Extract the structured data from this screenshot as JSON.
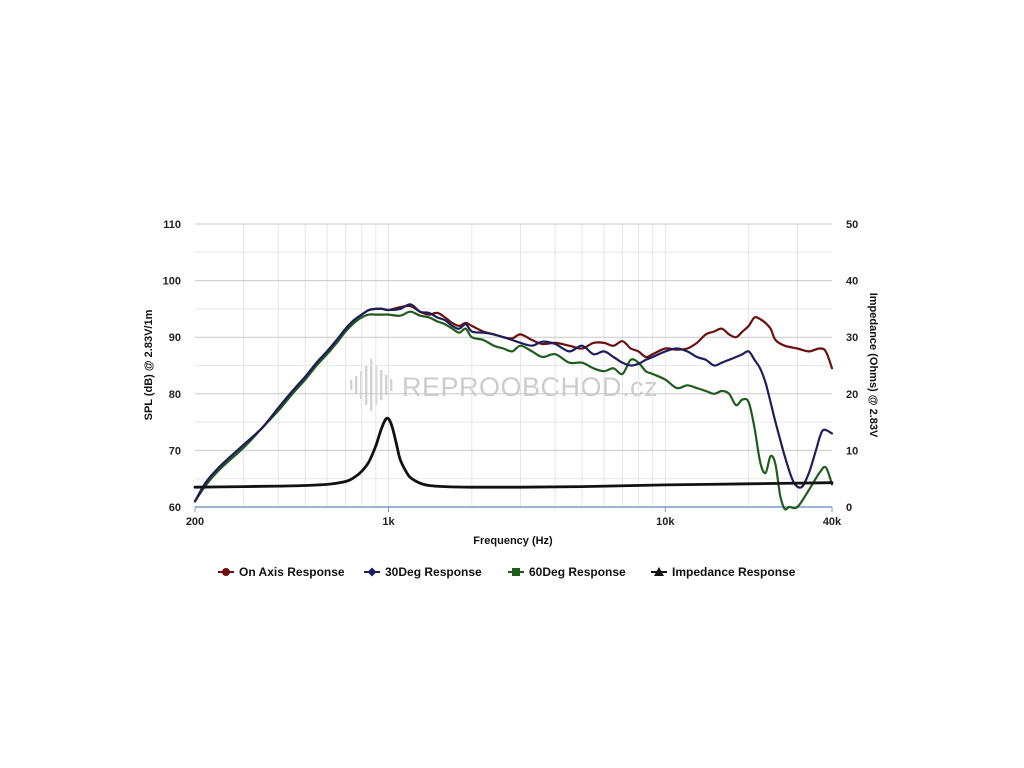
{
  "watermark": {
    "text": "REPROOBCHOD.cz",
    "logo_icon": "sound-wave-icon"
  },
  "chart_data": {
    "type": "line",
    "xlabel": "Frequency (Hz)",
    "ylabel": "SPL (dB) @ 2.83V/1m",
    "y2label": "Impedance (Ohms) @ 2.83V",
    "x_scale": "log",
    "xlim": [
      200,
      40000
    ],
    "ylim": [
      60,
      110
    ],
    "y2lim": [
      0,
      50
    ],
    "x_ticks": [
      200,
      1000,
      10000,
      40000
    ],
    "x_tick_labels": [
      "200",
      "1k",
      "10k",
      "40k"
    ],
    "y_ticks": [
      60,
      70,
      80,
      90,
      100,
      110
    ],
    "y_tick_labels": [
      "60",
      "70",
      "80",
      "90",
      "100",
      "110"
    ],
    "y2_ticks": [
      0,
      10,
      20,
      30,
      40,
      50
    ],
    "y2_tick_labels": [
      "0",
      "10",
      "20",
      "30",
      "40",
      "50"
    ],
    "grid": true,
    "legend_position": "bottom",
    "series": [
      {
        "name": "On Axis Response",
        "axis": "left",
        "color": "#6b1010",
        "marker": "circle",
        "x": [
          200,
          220,
          250,
          300,
          350,
          400,
          450,
          500,
          550,
          600,
          650,
          700,
          750,
          800,
          850,
          900,
          950,
          1000,
          1100,
          1200,
          1300,
          1400,
          1500,
          1600,
          1700,
          1800,
          1900,
          2000,
          2200,
          2400,
          2600,
          2800,
          3000,
          3300,
          3600,
          4000,
          4500,
          5000,
          5500,
          6000,
          6500,
          7000,
          7500,
          8000,
          8500,
          9000,
          10000,
          11000,
          12000,
          13000,
          14000,
          15000,
          16000,
          17000,
          18000,
          19000,
          20000,
          21000,
          22000,
          23000,
          24000,
          25000,
          27000,
          30000,
          33000,
          36000,
          38000,
          40000
        ],
        "values": [
          61.0,
          64.5,
          67.5,
          71.0,
          74.0,
          77.5,
          80.5,
          83.0,
          85.5,
          87.5,
          89.5,
          91.5,
          93.0,
          94.0,
          94.8,
          95.0,
          95.0,
          94.8,
          95.3,
          95.5,
          94.5,
          94.0,
          94.3,
          93.5,
          92.5,
          92.0,
          92.5,
          92.0,
          91.0,
          90.5,
          90.0,
          89.8,
          90.5,
          89.5,
          88.8,
          89.0,
          88.5,
          88.0,
          89.0,
          89.0,
          88.5,
          89.3,
          88.0,
          87.5,
          86.5,
          87.0,
          88.0,
          87.8,
          88.0,
          89.0,
          90.5,
          91.0,
          91.5,
          90.5,
          90.0,
          91.0,
          92.0,
          93.5,
          93.2,
          92.5,
          91.5,
          89.5,
          88.5,
          88.0,
          87.5,
          88.0,
          87.5,
          84.5
        ]
      },
      {
        "name": "30Deg Response",
        "axis": "left",
        "color": "#1c1f5c",
        "marker": "diamond",
        "x": [
          200,
          220,
          250,
          300,
          350,
          400,
          450,
          500,
          550,
          600,
          650,
          700,
          750,
          800,
          850,
          900,
          950,
          1000,
          1100,
          1200,
          1300,
          1400,
          1500,
          1600,
          1700,
          1800,
          1900,
          2000,
          2200,
          2400,
          2600,
          2800,
          3000,
          3300,
          3600,
          4000,
          4500,
          5000,
          5500,
          6000,
          6500,
          7000,
          7500,
          8000,
          8500,
          9000,
          10000,
          11000,
          12000,
          13000,
          14000,
          15000,
          16000,
          17000,
          18000,
          19000,
          20000,
          21000,
          22000,
          23000,
          24000,
          25000,
          27000,
          29000,
          31000,
          33000,
          35000,
          37000,
          40000
        ],
        "values": [
          61.0,
          64.5,
          67.5,
          71.0,
          74.0,
          77.5,
          80.5,
          83.0,
          85.5,
          87.5,
          89.5,
          91.5,
          93.0,
          94.0,
          94.8,
          95.0,
          95.0,
          94.8,
          95.0,
          95.8,
          94.5,
          94.3,
          93.5,
          93.0,
          92.0,
          91.5,
          92.3,
          91.0,
          90.8,
          90.5,
          90.0,
          89.5,
          89.0,
          88.5,
          89.2,
          88.8,
          87.5,
          88.5,
          87.0,
          87.5,
          86.5,
          85.5,
          85.0,
          85.3,
          86.0,
          86.5,
          87.5,
          88.0,
          87.5,
          86.5,
          86.0,
          85.0,
          85.5,
          86.0,
          86.5,
          87.0,
          87.5,
          86.0,
          84.5,
          82.0,
          78.5,
          75.0,
          69.0,
          64.5,
          63.5,
          66.0,
          70.0,
          73.5,
          73.0
        ]
      },
      {
        "name": "60Deg Response",
        "axis": "left",
        "color": "#1e5c1e",
        "marker": "square",
        "x": [
          200,
          220,
          250,
          300,
          350,
          400,
          450,
          500,
          550,
          600,
          650,
          700,
          750,
          800,
          850,
          900,
          950,
          1000,
          1100,
          1200,
          1300,
          1400,
          1500,
          1600,
          1700,
          1800,
          1900,
          2000,
          2200,
          2400,
          2600,
          2800,
          3000,
          3300,
          3600,
          4000,
          4500,
          5000,
          5500,
          6000,
          6500,
          7000,
          7500,
          8000,
          8500,
          9000,
          10000,
          11000,
          12000,
          13000,
          14000,
          15000,
          16000,
          17000,
          18000,
          19000,
          20000,
          21000,
          22000,
          23000,
          24000,
          25000,
          26000,
          27000,
          28000,
          30000,
          33000,
          36000,
          38000,
          40000
        ],
        "values": [
          61.0,
          64.0,
          67.0,
          70.5,
          74.0,
          77.0,
          80.0,
          82.5,
          85.0,
          87.0,
          89.0,
          91.0,
          92.5,
          93.5,
          94.0,
          94.0,
          94.0,
          94.0,
          93.8,
          94.5,
          93.8,
          93.5,
          92.8,
          92.3,
          91.5,
          90.8,
          91.5,
          90.0,
          89.5,
          88.5,
          88.0,
          87.5,
          88.5,
          87.5,
          86.5,
          87.0,
          85.5,
          85.5,
          84.5,
          84.0,
          84.5,
          83.5,
          86.0,
          85.5,
          84.0,
          83.5,
          82.5,
          81.0,
          81.5,
          81.0,
          80.5,
          80.0,
          80.5,
          80.0,
          78.0,
          79.0,
          78.5,
          74.0,
          68.0,
          66.0,
          69.0,
          67.5,
          62.0,
          59.5,
          60.0,
          60.0,
          63.0,
          66.0,
          67.0,
          64.0
        ]
      },
      {
        "name": "Impedance Response",
        "axis": "right",
        "color": "#111111",
        "marker": "triangle",
        "x": [
          200,
          300,
          400,
          500,
          600,
          700,
          750,
          800,
          850,
          900,
          930,
          960,
          980,
          1000,
          1020,
          1040,
          1070,
          1100,
          1150,
          1200,
          1300,
          1400,
          1600,
          2000,
          3000,
          5000,
          10000,
          20000,
          40000
        ],
        "values": [
          3.5,
          3.6,
          3.7,
          3.8,
          4.0,
          4.5,
          5.2,
          6.3,
          8.0,
          10.8,
          13.0,
          14.8,
          15.6,
          15.6,
          14.8,
          13.5,
          11.0,
          8.5,
          6.5,
          5.2,
          4.2,
          3.8,
          3.6,
          3.5,
          3.5,
          3.6,
          3.9,
          4.1,
          4.3
        ]
      }
    ]
  }
}
